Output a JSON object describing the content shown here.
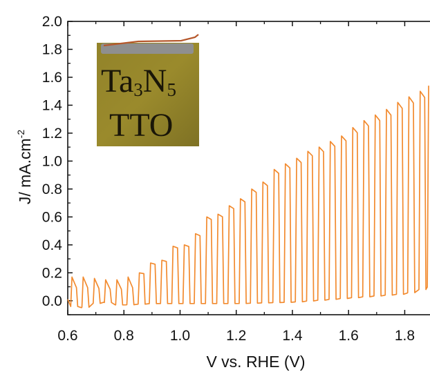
{
  "chart_data": {
    "type": "line",
    "title": "",
    "xlabel": "V vs. RHE (V)",
    "ylabel": "J/ mA.cm",
    "ylabel_superscript": "-2",
    "xlim": [
      0.6,
      1.89
    ],
    "ylim": [
      -0.1,
      2.0
    ],
    "x_ticks": [
      0.6,
      0.8,
      1.0,
      1.2,
      1.4,
      1.6,
      1.8
    ],
    "x_tick_labels": [
      "0.6",
      "0.8",
      "1.0",
      "1.2",
      "1.4",
      "1.6",
      "1.8"
    ],
    "y_ticks": [
      0.0,
      0.2,
      0.4,
      0.6,
      0.8,
      1.0,
      1.2,
      1.4,
      1.6,
      1.8,
      2.0
    ],
    "y_tick_labels": [
      "0.0",
      "0.2",
      "0.4",
      "0.6",
      "0.8",
      "1.0",
      "1.2",
      "1.4",
      "1.6",
      "1.8",
      "2.0"
    ],
    "grid": false,
    "legend": "none",
    "series": [
      {
        "line_color": "#f28a2e",
        "description_dark_current": "near 0 mA/cm2 between pulses",
        "pulses": [
          {
            "x": 0.615,
            "y": 0.17
          },
          {
            "x": 0.655,
            "y": 0.17
          },
          {
            "x": 0.695,
            "y": 0.16
          },
          {
            "x": 0.735,
            "y": 0.15
          },
          {
            "x": 0.775,
            "y": 0.15
          },
          {
            "x": 0.815,
            "y": 0.17
          },
          {
            "x": 0.855,
            "y": 0.2
          },
          {
            "x": 0.895,
            "y": 0.27
          },
          {
            "x": 0.935,
            "y": 0.29
          },
          {
            "x": 0.975,
            "y": 0.39
          },
          {
            "x": 1.015,
            "y": 0.4
          },
          {
            "x": 1.055,
            "y": 0.48
          },
          {
            "x": 1.095,
            "y": 0.6
          },
          {
            "x": 1.135,
            "y": 0.62
          },
          {
            "x": 1.175,
            "y": 0.68
          },
          {
            "x": 1.215,
            "y": 0.73
          },
          {
            "x": 1.255,
            "y": 0.8
          },
          {
            "x": 1.295,
            "y": 0.85
          },
          {
            "x": 1.335,
            "y": 0.94
          },
          {
            "x": 1.375,
            "y": 0.98
          },
          {
            "x": 1.415,
            "y": 1.02
          },
          {
            "x": 1.455,
            "y": 1.07
          },
          {
            "x": 1.495,
            "y": 1.1
          },
          {
            "x": 1.535,
            "y": 1.14
          },
          {
            "x": 1.575,
            "y": 1.18
          },
          {
            "x": 1.615,
            "y": 1.24
          },
          {
            "x": 1.655,
            "y": 1.29
          },
          {
            "x": 1.695,
            "y": 1.33
          },
          {
            "x": 1.735,
            "y": 1.37
          },
          {
            "x": 1.775,
            "y": 1.42
          },
          {
            "x": 1.815,
            "y": 1.46
          },
          {
            "x": 1.855,
            "y": 1.5
          },
          {
            "x": 1.885,
            "y": 1.54
          }
        ],
        "dark_current": [
          {
            "x": 0.61,
            "y": -0.04
          },
          {
            "x": 0.65,
            "y": -0.05
          },
          {
            "x": 0.69,
            "y": -0.02
          },
          {
            "x": 0.73,
            "y": -0.01
          },
          {
            "x": 0.77,
            "y": -0.03
          },
          {
            "x": 0.8,
            "y": -0.03
          },
          {
            "x": 0.9,
            "y": -0.02
          },
          {
            "x": 1.0,
            "y": -0.02
          },
          {
            "x": 1.2,
            "y": -0.02
          },
          {
            "x": 1.4,
            "y": -0.01
          },
          {
            "x": 1.6,
            "y": 0.02
          },
          {
            "x": 1.8,
            "y": 0.05
          },
          {
            "x": 1.89,
            "y": 0.1
          }
        ]
      }
    ],
    "inset": {
      "type": "photo",
      "label_line1_main": "Ta",
      "label_line1_sub1": "3",
      "label_line1_mid": "N",
      "label_line1_sub2": "5",
      "label_line2": "TTO",
      "colors": {
        "film": "#9a8a2c",
        "film_dark": "#6b5c1a",
        "contact": "#8f8f8f",
        "wire": "#b5572b"
      }
    }
  }
}
